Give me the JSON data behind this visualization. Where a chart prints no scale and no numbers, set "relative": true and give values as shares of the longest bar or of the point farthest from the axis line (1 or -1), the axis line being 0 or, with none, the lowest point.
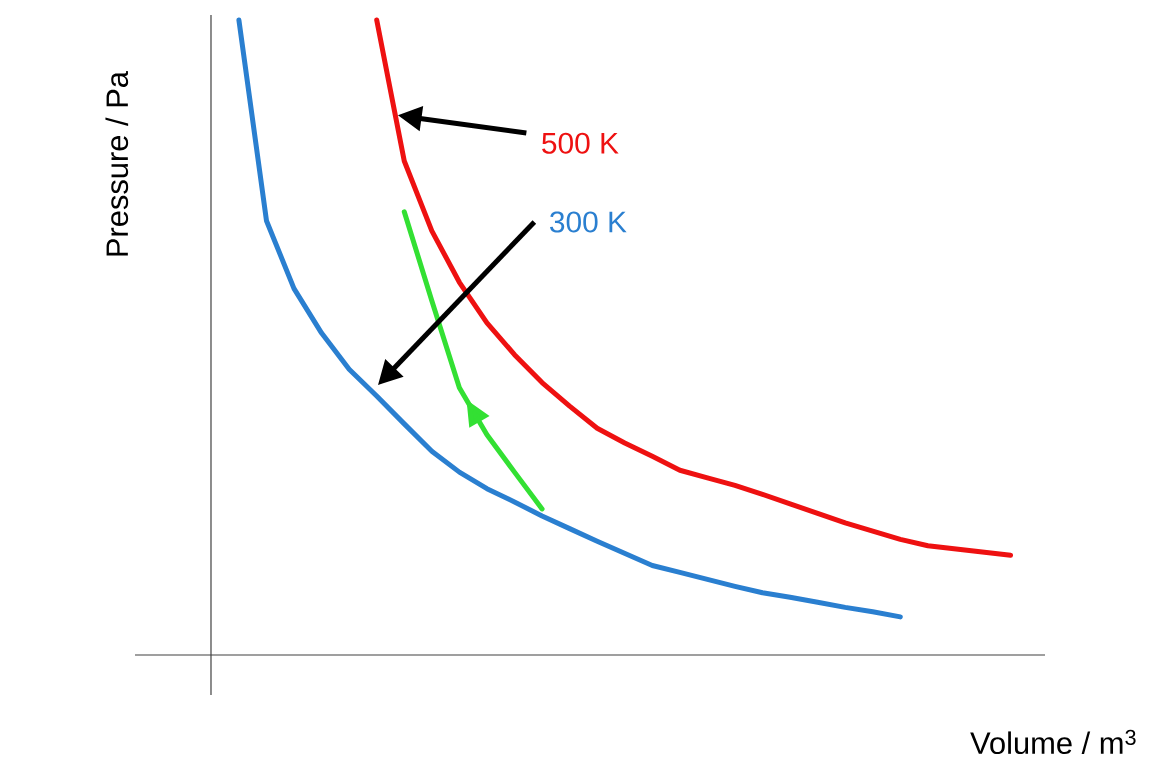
{
  "chart_data": {
    "type": "line",
    "relative": true,
    "xlabel": "Volume / m$^{3}$",
    "ylabel": "Pressure / Pa",
    "categories": [
      null,
      null,
      null,
      null,
      null,
      null,
      null,
      null,
      null,
      null,
      null,
      null,
      null,
      null,
      null,
      null,
      null,
      null,
      null,
      null,
      null,
      null,
      null,
      null,
      null,
      null,
      null,
      null,
      null
    ],
    "series": [
      {
        "name": "300 K",
        "color": "#2a7fd0",
        "values": [
          1.0,
          0.684,
          0.577,
          0.507,
          0.45,
          0.408,
          0.364,
          0.321,
          0.288,
          0.262,
          0.241,
          0.219,
          0.199,
          0.179,
          0.16,
          0.141,
          0.13,
          0.119,
          0.108,
          0.098,
          0.091,
          0.083,
          0.075,
          0.068,
          0.06,
          null,
          null,
          null,
          null
        ]
      },
      {
        "name": "500 K",
        "color": "#ee1111",
        "values": [
          null,
          null,
          null,
          null,
          null,
          1.0,
          0.778,
          0.668,
          0.587,
          0.523,
          0.473,
          0.429,
          0.392,
          0.357,
          0.334,
          0.313,
          0.291,
          0.279,
          0.267,
          0.253,
          0.238,
          0.223,
          0.208,
          0.195,
          0.182,
          0.172,
          0.167,
          0.162,
          0.157
        ]
      },
      {
        "color": "#33e033",
        "values": [
          null,
          null,
          null,
          null,
          null,
          null,
          0.698,
          0.558,
          0.421,
          0.347,
          0.288,
          0.23,
          null,
          null,
          null,
          null,
          null,
          null,
          null,
          null,
          null,
          null,
          null,
          null,
          null,
          null,
          null,
          null,
          null
        ]
      }
    ]
  }
}
